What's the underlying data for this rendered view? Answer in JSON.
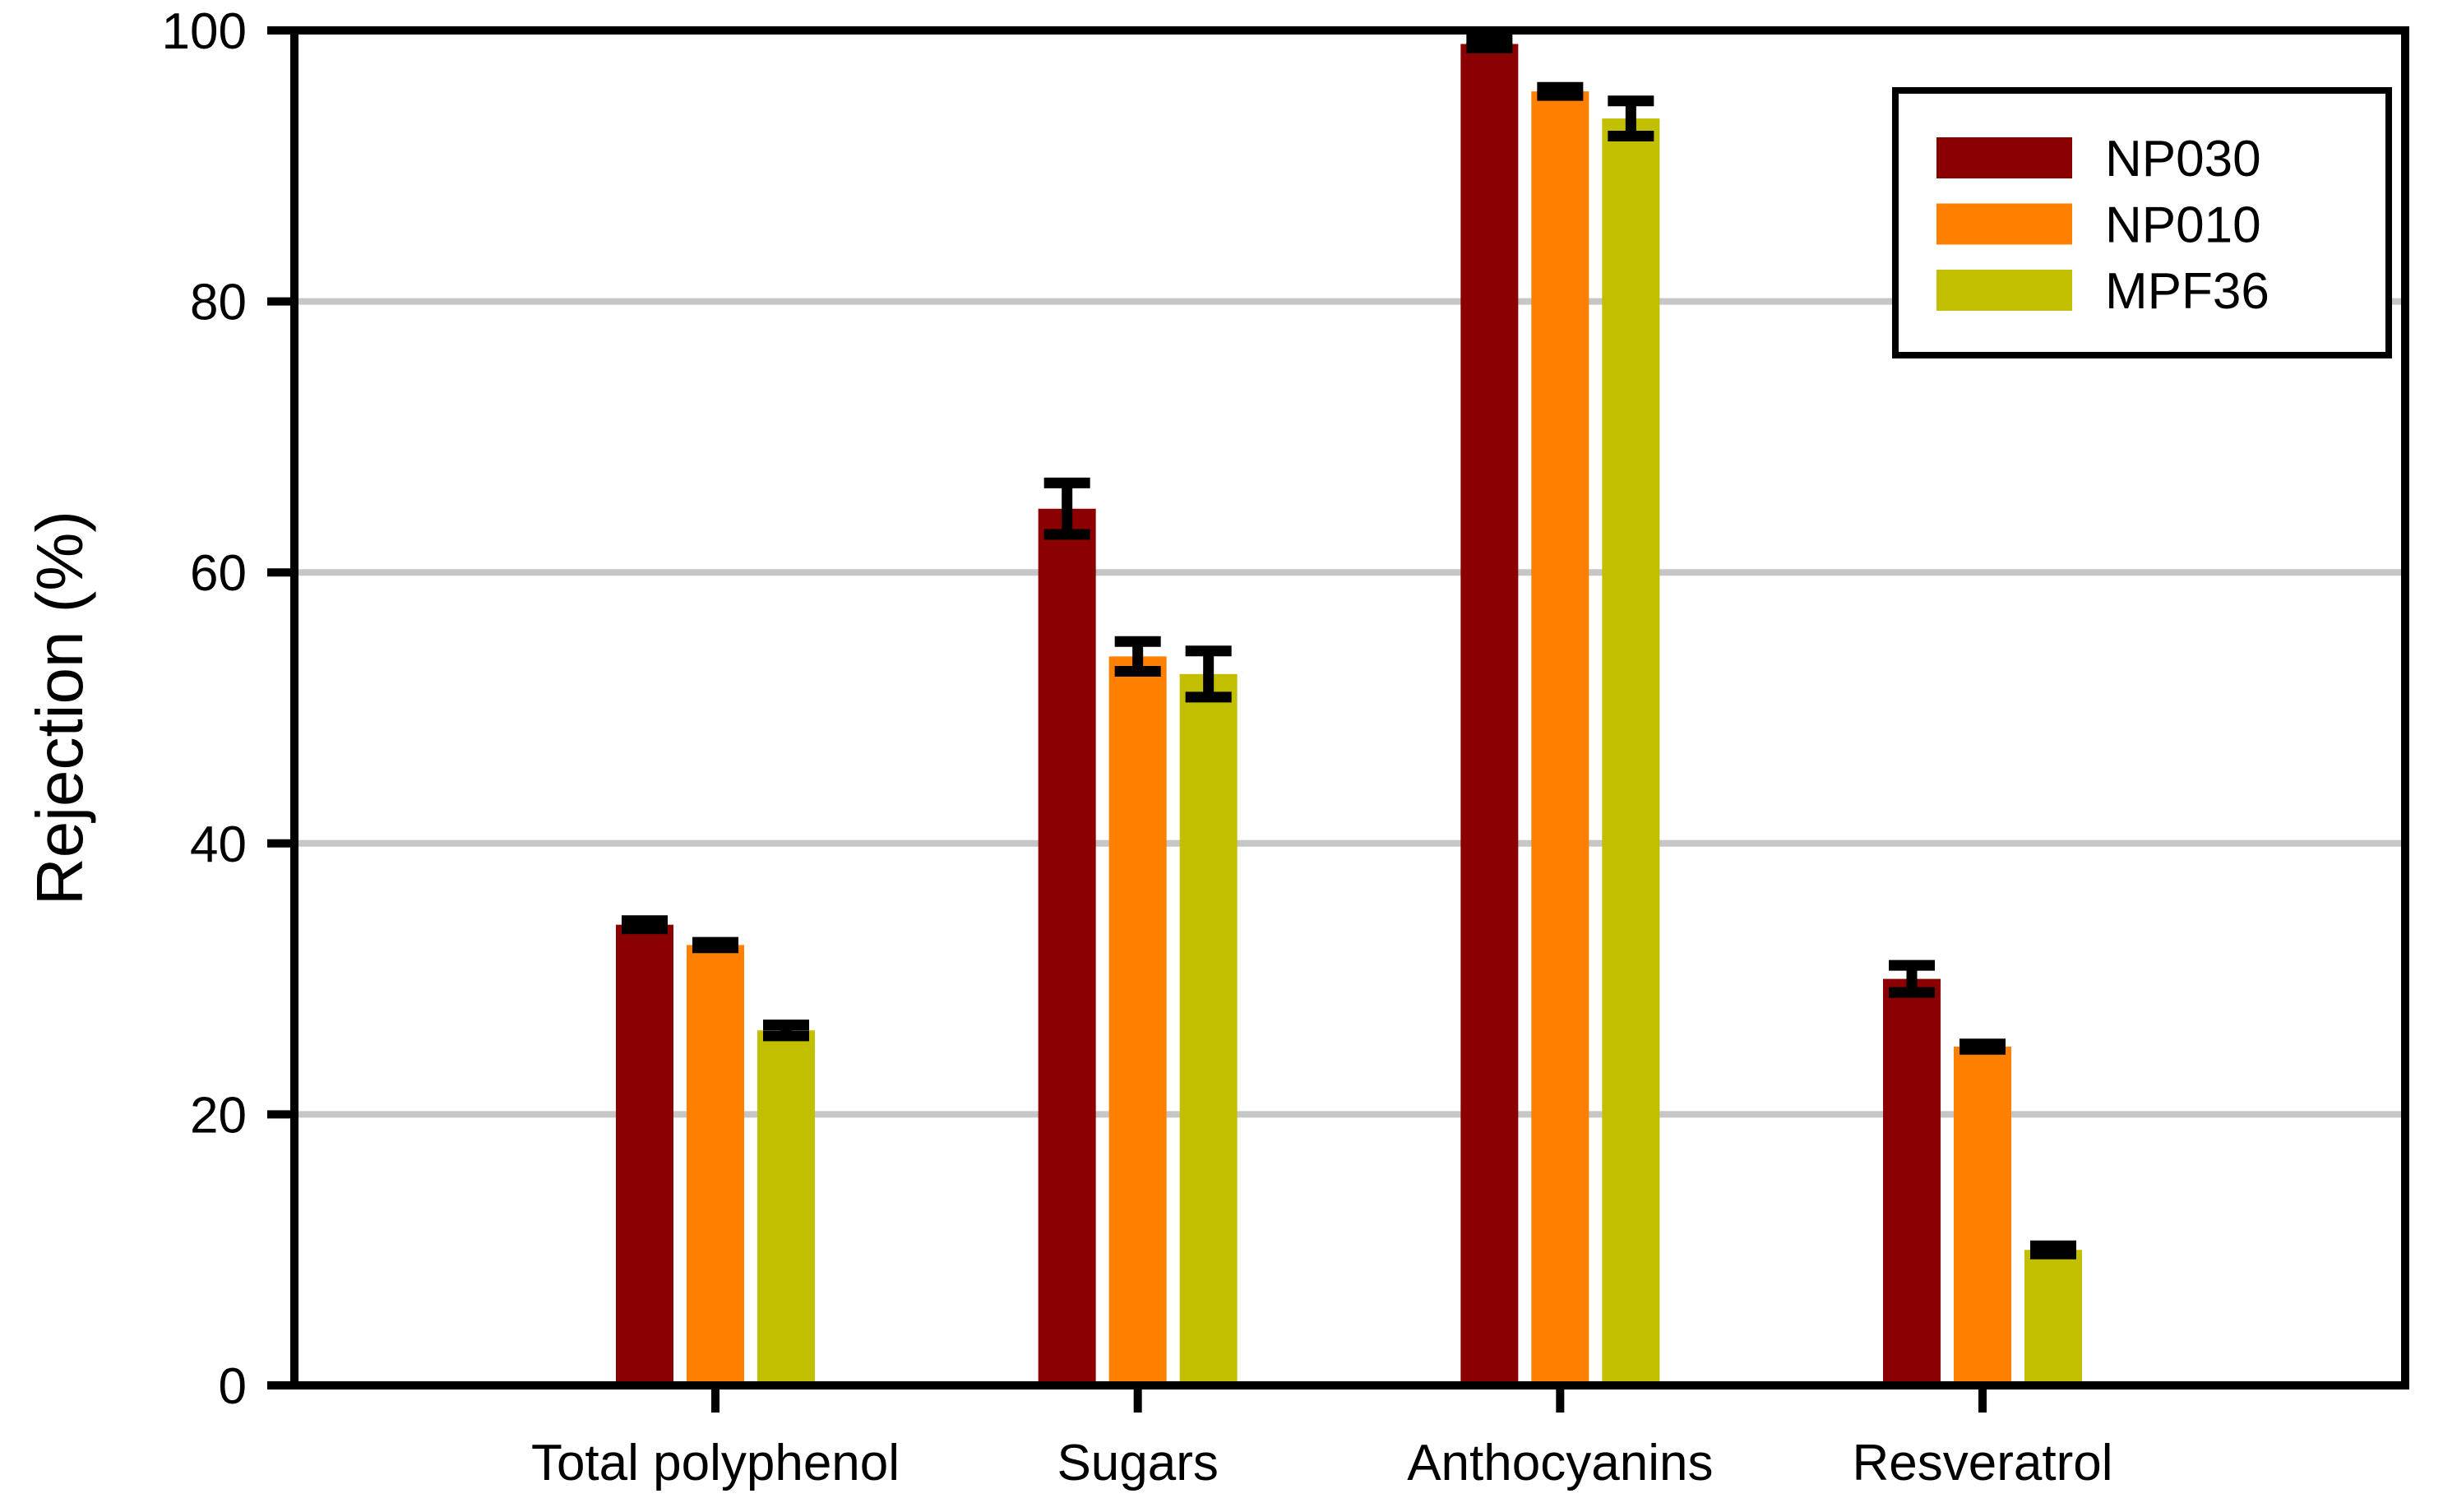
{
  "figure": {
    "background": "#ffffff"
  },
  "chart_data": {
    "type": "bar",
    "title": "",
    "xlabel": "",
    "ylabel": "Rejection (%)",
    "ylim": [
      0,
      100
    ],
    "yticks": [
      0,
      20,
      40,
      60,
      80,
      100
    ],
    "grid": true,
    "grid_color": "#c6c6c6",
    "axis_color": "#000000",
    "frame": true,
    "legend_position": "upper right",
    "categories": [
      "Total polyphenol",
      "Sugars",
      "Anthocyanins",
      "Resveratrol"
    ],
    "series": [
      {
        "name": "NP030",
        "color": "#8B0000",
        "values": [
          34.0,
          64.7,
          99.0,
          30.0
        ],
        "errors": [
          0.3,
          1.9,
          0.3,
          1.0
        ]
      },
      {
        "name": "NP010",
        "color": "#FF8000",
        "values": [
          32.5,
          53.8,
          95.5,
          25.0
        ],
        "errors": [
          0.2,
          1.1,
          0.3,
          0.2
        ]
      },
      {
        "name": "MPF36",
        "color": "#C2BE00",
        "values": [
          26.2,
          52.5,
          93.5,
          10.0
        ],
        "errors": [
          0.4,
          1.7,
          1.3,
          0.3
        ]
      }
    ],
    "error_bar_color": "#000000"
  }
}
